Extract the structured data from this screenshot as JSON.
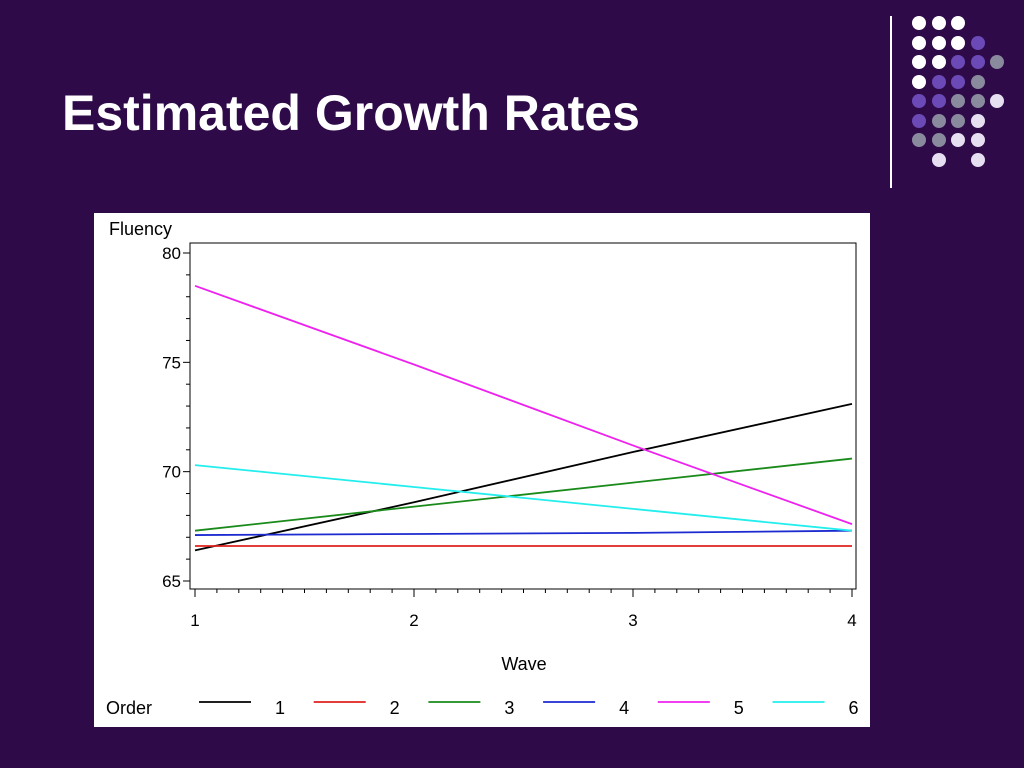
{
  "slide": {
    "title": "Estimated Growth Rates"
  },
  "decor": {
    "dot_colors": {
      "white": "#ffffff",
      "lavender": "#e6dff2",
      "purple": "#6b4ab8",
      "gray": "#8a8a9e"
    }
  },
  "chart_data": {
    "type": "line",
    "ylabel": "Fluency",
    "xlabel": "Wave",
    "x": [
      1,
      2,
      3,
      4
    ],
    "xlim": [
      1,
      4
    ],
    "ylim": [
      65,
      80
    ],
    "yticks": [
      65,
      70,
      75,
      80
    ],
    "xticks": [
      1,
      2,
      3,
      4
    ],
    "grid": false,
    "legend": {
      "title": "Order",
      "placement": "bottom"
    },
    "series": [
      {
        "name": "1",
        "color": "#000000",
        "values": [
          66.4,
          68.6,
          70.9,
          73.1
        ]
      },
      {
        "name": "2",
        "color": "#e0201c",
        "values": [
          66.6,
          66.6,
          66.6,
          66.6
        ]
      },
      {
        "name": "3",
        "color": "#1a8a1a",
        "values": [
          67.3,
          68.4,
          69.5,
          70.6
        ]
      },
      {
        "name": "4",
        "color": "#1c2ad0",
        "values": [
          67.1,
          67.15,
          67.2,
          67.3
        ]
      },
      {
        "name": "5",
        "color": "#ee22ee",
        "values": [
          78.5,
          74.9,
          71.2,
          67.6
        ]
      },
      {
        "name": "6",
        "color": "#22eeee",
        "values": [
          70.3,
          69.3,
          68.3,
          67.3
        ]
      }
    ]
  }
}
